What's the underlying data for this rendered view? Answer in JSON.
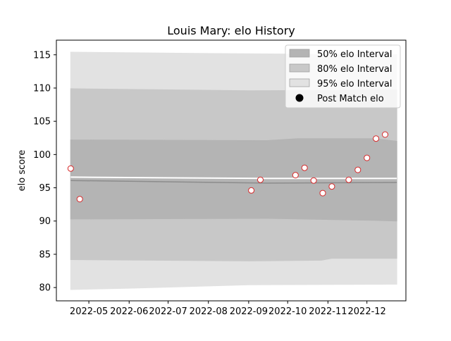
{
  "chart_data": {
    "type": "line",
    "title": "Louis Mary: elo History",
    "xlabel": "",
    "ylabel": "elo score",
    "xlim": [
      "2022-04-06",
      "2022-12-31"
    ],
    "ylim": [
      78.0,
      117.2
    ],
    "x_ticks": [
      "2022-05",
      "2022-06",
      "2022-07",
      "2022-08",
      "2022-09",
      "2022-10",
      "2022-11",
      "2022-12"
    ],
    "y_ticks": [
      80,
      85,
      90,
      95,
      100,
      105,
      110,
      115
    ],
    "grid": false,
    "legend_position": "top-right",
    "legend": [
      {
        "label": "50% elo Interval",
        "kind": "band",
        "color": "#b4b4b4"
      },
      {
        "label": "80% elo Interval",
        "kind": "band",
        "color": "#c8c8c8"
      },
      {
        "label": "95% elo Interval",
        "kind": "band",
        "color": "#e2e2e2"
      },
      {
        "label": "Post Match elo",
        "kind": "marker",
        "color": "#000000"
      }
    ],
    "bands": [
      {
        "name": "95% elo Interval",
        "color": "#e2e2e2",
        "upper": [
          [
            "2022-04-17",
            115.4
          ],
          [
            "2022-08-01",
            115.2
          ],
          [
            "2022-12-24",
            115.0
          ]
        ],
        "lower": [
          [
            "2022-04-17",
            79.7
          ],
          [
            "2022-06-01",
            79.9
          ],
          [
            "2022-09-01",
            80.4
          ],
          [
            "2022-12-24",
            80.5
          ]
        ]
      },
      {
        "name": "80% elo Interval",
        "color": "#c8c8c8",
        "upper": [
          [
            "2022-04-17",
            109.9
          ],
          [
            "2022-09-01",
            109.6
          ],
          [
            "2022-12-24",
            109.7
          ]
        ],
        "lower": [
          [
            "2022-04-17",
            84.2
          ],
          [
            "2022-09-01",
            84.0
          ],
          [
            "2022-10-27",
            84.1
          ],
          [
            "2022-11-04",
            84.4
          ],
          [
            "2022-12-24",
            84.4
          ]
        ]
      },
      {
        "name": "50% elo Interval",
        "color": "#b4b4b4",
        "upper": [
          [
            "2022-04-17",
            102.2
          ],
          [
            "2022-09-15",
            102.1
          ],
          [
            "2022-10-09",
            102.4
          ],
          [
            "2022-12-07",
            102.4
          ],
          [
            "2022-12-24",
            102.0
          ]
        ],
        "lower": [
          [
            "2022-04-17",
            90.3
          ],
          [
            "2022-09-15",
            90.4
          ],
          [
            "2022-12-07",
            90.1
          ],
          [
            "2022-12-24",
            90.0
          ]
        ]
      }
    ],
    "lines": [
      {
        "name": "mean",
        "color": "#8c8c8c",
        "points": [
          [
            "2022-04-17",
            96.1
          ],
          [
            "2022-09-15",
            95.7
          ],
          [
            "2022-12-24",
            95.8
          ]
        ]
      },
      {
        "name": "posterior",
        "color": "#ffffff",
        "points": [
          [
            "2022-04-17",
            96.6
          ],
          [
            "2022-09-15",
            96.4
          ],
          [
            "2022-12-24",
            96.4
          ]
        ]
      }
    ],
    "series": [
      {
        "name": "Post Match elo",
        "marker_edge_color": "#d62728",
        "marker_face_color": "#ffffff",
        "points": [
          {
            "x": "2022-04-17",
            "y": 97.9
          },
          {
            "x": "2022-04-24",
            "y": 93.3
          },
          {
            "x": "2022-09-03",
            "y": 94.6
          },
          {
            "x": "2022-09-10",
            "y": 96.2
          },
          {
            "x": "2022-10-07",
            "y": 96.9
          },
          {
            "x": "2022-10-14",
            "y": 98.0
          },
          {
            "x": "2022-10-21",
            "y": 96.1
          },
          {
            "x": "2022-10-28",
            "y": 94.2
          },
          {
            "x": "2022-11-04",
            "y": 95.2
          },
          {
            "x": "2022-11-17",
            "y": 96.2
          },
          {
            "x": "2022-11-24",
            "y": 97.7
          },
          {
            "x": "2022-12-01",
            "y": 99.5
          },
          {
            "x": "2022-12-08",
            "y": 102.4
          },
          {
            "x": "2022-12-15",
            "y": 103.0
          }
        ]
      }
    ]
  }
}
